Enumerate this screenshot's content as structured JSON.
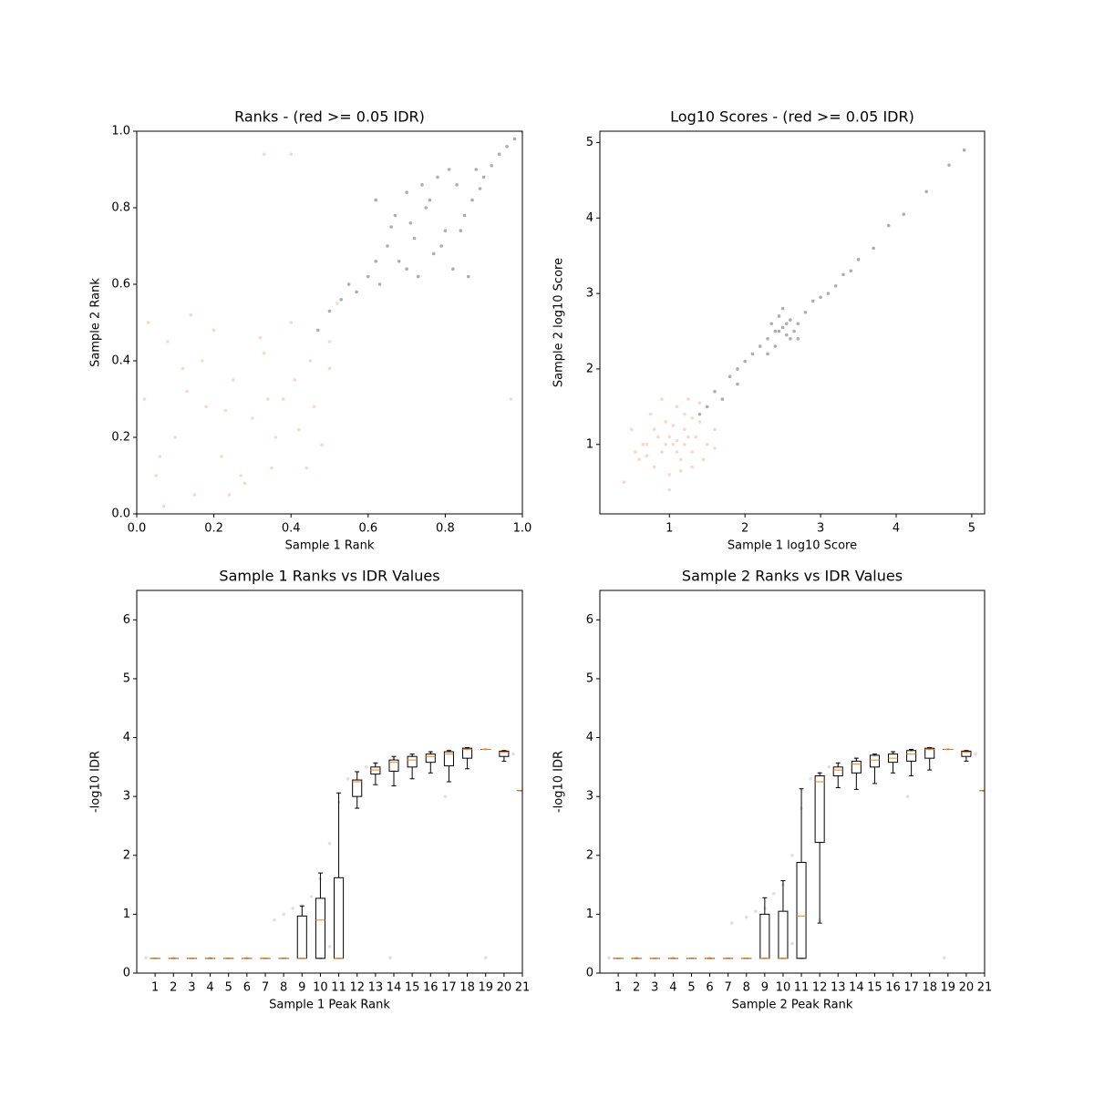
{
  "chart_data": [
    {
      "type": "scatter",
      "title": "Ranks - (red >= 0.05 IDR)",
      "x_label": "Sample 1 Rank",
      "y_label": "Sample 2 Rank",
      "xlim": [
        0,
        1
      ],
      "ylim": [
        0,
        1
      ],
      "xticks": [
        {
          "value": 0,
          "label": "0.0"
        },
        {
          "value": 0.2,
          "label": "0.2"
        },
        {
          "value": 0.4,
          "label": "0.4"
        },
        {
          "value": 0.6,
          "label": "0.6"
        },
        {
          "value": 0.8,
          "label": "0.8"
        },
        {
          "value": 1,
          "label": "1.0"
        }
      ],
      "yticks": [
        {
          "value": 0,
          "label": "0.0"
        },
        {
          "value": 0.2,
          "label": "0.2"
        },
        {
          "value": 0.4,
          "label": "0.4"
        },
        {
          "value": 0.6,
          "label": "0.6"
        },
        {
          "value": 0.8,
          "label": "0.8"
        },
        {
          "value": 1,
          "label": "1.0"
        }
      ],
      "series": [
        {
          "color": "#f08a6a",
          "alpha": 0.35,
          "x": [
            0.02,
            0.05,
            0.08,
            0.1,
            0.12,
            0.15,
            0.18,
            0.2,
            0.22,
            0.25,
            0.28,
            0.3,
            0.33,
            0.35,
            0.38,
            0.4,
            0.42,
            0.45,
            0.48,
            0.5,
            0.52,
            0.03,
            0.07,
            0.13,
            0.17,
            0.23,
            0.27,
            0.32,
            0.36,
            0.41,
            0.46,
            0.5,
            0.06,
            0.14,
            0.24,
            0.34,
            0.44,
            0.33,
            0.4,
            0.97
          ],
          "y": [
            0.3,
            0.1,
            0.45,
            0.2,
            0.38,
            0.05,
            0.28,
            0.48,
            0.15,
            0.35,
            0.08,
            0.25,
            0.42,
            0.12,
            0.3,
            0.5,
            0.22,
            0.4,
            0.18,
            0.45,
            0.55,
            0.5,
            0.02,
            0.32,
            0.4,
            0.27,
            0.1,
            0.46,
            0.2,
            0.35,
            0.28,
            0.38,
            0.15,
            0.52,
            0.05,
            0.3,
            0.12,
            0.94,
            0.94,
            0.3
          ]
        },
        {
          "color": "#333333",
          "alpha": 0.4,
          "x": [
            0.47,
            0.5,
            0.53,
            0.55,
            0.57,
            0.6,
            0.62,
            0.63,
            0.65,
            0.67,
            0.68,
            0.7,
            0.72,
            0.73,
            0.75,
            0.77,
            0.78,
            0.8,
            0.82,
            0.83,
            0.85,
            0.87,
            0.88,
            0.9,
            0.92,
            0.94,
            0.96,
            0.98,
            1.0,
            0.62,
            0.66,
            0.7,
            0.74,
            0.79,
            0.84,
            0.86,
            0.71,
            0.76,
            0.81,
            0.89
          ],
          "y": [
            0.48,
            0.53,
            0.56,
            0.6,
            0.58,
            0.62,
            0.82,
            0.6,
            0.7,
            0.78,
            0.66,
            0.84,
            0.72,
            0.62,
            0.8,
            0.68,
            0.88,
            0.74,
            0.64,
            0.86,
            0.78,
            0.82,
            0.9,
            0.88,
            0.91,
            0.94,
            0.96,
            0.98,
            1.0,
            0.66,
            0.75,
            0.64,
            0.86,
            0.7,
            0.74,
            0.62,
            0.76,
            0.82,
            0.9,
            0.85
          ]
        }
      ]
    },
    {
      "type": "scatter",
      "title": "Log10 Scores - (red >= 0.05 IDR)",
      "x_label": "Sample 1 log10 Score",
      "y_label": "Sample 2 log10 Score",
      "xlim": [
        0.08,
        5.17
      ],
      "ylim": [
        0.08,
        5.15
      ],
      "xticks": [
        1,
        2,
        3,
        4,
        5
      ],
      "yticks": [
        1,
        2,
        3,
        4,
        5
      ],
      "series": [
        {
          "color": "#f08a6a",
          "alpha": 0.35,
          "x": [
            0.4,
            0.5,
            0.6,
            0.7,
            0.75,
            0.8,
            0.85,
            0.9,
            0.95,
            1.0,
            1.05,
            1.1,
            1.15,
            1.2,
            1.25,
            1.3,
            1.35,
            1.4,
            1.5,
            1.6,
            0.65,
            0.9,
            1.0,
            1.1,
            1.2,
            1.3,
            0.8,
            1.0,
            1.2,
            1.45,
            0.55,
            0.95,
            1.05,
            1.15,
            1.4,
            1.25,
            0.7,
            1.1,
            1.3,
            1.6
          ],
          "y": [
            0.5,
            1.2,
            0.8,
            1.0,
            1.4,
            0.7,
            1.1,
            0.9,
            1.3,
            0.6,
            1.0,
            1.5,
            0.8,
            1.2,
            1.6,
            0.9,
            1.1,
            1.3,
            1.0,
            1.2,
            1.0,
            1.6,
            0.4,
            0.9,
            1.0,
            0.7,
            1.2,
            1.1,
            1.4,
            0.8,
            0.9,
            1.0,
            1.25,
            0.65,
            1.55,
            1.1,
            0.85,
            1.05,
            1.35,
            0.95
          ]
        },
        {
          "color": "#333333",
          "alpha": 0.4,
          "x": [
            1.4,
            1.5,
            1.6,
            1.7,
            1.8,
            1.9,
            2.0,
            2.1,
            2.2,
            2.3,
            2.35,
            2.4,
            2.45,
            2.5,
            2.55,
            2.6,
            2.65,
            2.7,
            2.8,
            2.9,
            3.0,
            3.1,
            3.2,
            3.3,
            3.4,
            3.5,
            3.7,
            3.9,
            4.1,
            4.4,
            4.7,
            4.9,
            2.4,
            2.5,
            2.6,
            2.55,
            2.45,
            2.7,
            1.9,
            2.3
          ],
          "y": [
            1.4,
            1.5,
            1.7,
            1.6,
            1.9,
            2.0,
            2.1,
            2.2,
            2.3,
            2.4,
            2.6,
            2.5,
            2.7,
            2.55,
            2.45,
            2.65,
            2.5,
            2.6,
            2.75,
            2.9,
            2.95,
            3.0,
            3.1,
            3.25,
            3.3,
            3.45,
            3.6,
            3.9,
            4.05,
            4.35,
            4.7,
            4.9,
            2.3,
            2.8,
            2.4,
            2.6,
            2.5,
            2.4,
            1.8,
            2.2
          ]
        }
      ]
    },
    {
      "type": "box",
      "title": "Sample 1 Ranks vs IDR Values",
      "x_label": "Sample 1 Peak Rank",
      "y_label": "-log10 IDR",
      "xlim": [
        0,
        21
      ],
      "ylim": [
        0,
        6.5
      ],
      "xticks": [
        1,
        2,
        3,
        4,
        5,
        6,
        7,
        8,
        9,
        10,
        11,
        12,
        13,
        14,
        15,
        16,
        17,
        18,
        19,
        20,
        21
      ],
      "yticks": [
        0,
        1,
        2,
        3,
        4,
        5,
        6
      ],
      "points": {
        "color": "#999999",
        "alpha": 0.3,
        "x": [
          0.5,
          2,
          4,
          6,
          7.5,
          8,
          8.5,
          9,
          9.5,
          10,
          10.5,
          11,
          11.5,
          12,
          12.5,
          13,
          14,
          15,
          16,
          17,
          18,
          19,
          20,
          20.5,
          10.5,
          13.8,
          16.8,
          19
        ],
        "y": [
          0.26,
          0.26,
          0.26,
          0.26,
          0.9,
          1.0,
          1.1,
          1.15,
          1.3,
          1.6,
          2.2,
          2.9,
          3.3,
          3.4,
          3.5,
          3.55,
          3.65,
          3.7,
          3.75,
          3.78,
          3.8,
          3.8,
          3.76,
          3.72,
          0.45,
          0.26,
          3.0,
          0.26
        ]
      },
      "positions": [
        1,
        2,
        3,
        4,
        5,
        6,
        7,
        8,
        9,
        10,
        11,
        12,
        13,
        14,
        15,
        16,
        17,
        18,
        19,
        20,
        21
      ],
      "boxes": [
        [
          0.25,
          0.25,
          0.25,
          0.25,
          0.25
        ],
        [
          0.25,
          0.25,
          0.25,
          0.25,
          0.25
        ],
        [
          0.25,
          0.25,
          0.25,
          0.25,
          0.25
        ],
        [
          0.25,
          0.25,
          0.25,
          0.25,
          0.25
        ],
        [
          0.25,
          0.25,
          0.25,
          0.25,
          0.25
        ],
        [
          0.25,
          0.25,
          0.25,
          0.25,
          0.25
        ],
        [
          0.25,
          0.25,
          0.25,
          0.25,
          0.25
        ],
        [
          0.25,
          0.25,
          0.25,
          0.25,
          0.25
        ],
        [
          0.25,
          0.25,
          0.25,
          0.97,
          1.14
        ],
        [
          0.25,
          0.25,
          0.9,
          1.27,
          1.7
        ],
        [
          0.25,
          0.25,
          0.25,
          1.62,
          3.06
        ],
        [
          2.8,
          3.0,
          3.25,
          3.28,
          3.42
        ],
        [
          3.2,
          3.38,
          3.45,
          3.5,
          3.57
        ],
        [
          3.18,
          3.43,
          3.58,
          3.62,
          3.68
        ],
        [
          3.3,
          3.5,
          3.62,
          3.68,
          3.72
        ],
        [
          3.4,
          3.58,
          3.68,
          3.72,
          3.76
        ],
        [
          3.25,
          3.52,
          3.72,
          3.76,
          3.78
        ],
        [
          3.47,
          3.65,
          3.8,
          3.82,
          3.83
        ],
        [
          3.8,
          3.8,
          3.8,
          3.8,
          3.8
        ],
        [
          3.6,
          3.68,
          3.75,
          3.77,
          3.78
        ],
        [
          3.1,
          3.1,
          3.1,
          3.1,
          3.1
        ]
      ]
    },
    {
      "type": "box",
      "title": "Sample 2 Ranks vs IDR Values",
      "x_label": "Sample 2 Peak Rank",
      "y_label": "-log10 IDR",
      "xlim": [
        0,
        21
      ],
      "ylim": [
        0,
        6.5
      ],
      "xticks": [
        1,
        2,
        3,
        4,
        5,
        6,
        7,
        8,
        9,
        10,
        11,
        12,
        13,
        14,
        15,
        16,
        17,
        18,
        19,
        20,
        21
      ],
      "yticks": [
        0,
        1,
        2,
        3,
        4,
        5,
        6
      ],
      "points": {
        "color": "#999999",
        "alpha": 0.3,
        "x": [
          0.5,
          2,
          4,
          6,
          7.2,
          8,
          8.5,
          9,
          9.5,
          10,
          10.5,
          11,
          11.5,
          12,
          12.5,
          13,
          14,
          15,
          16,
          17,
          18,
          19,
          20,
          20.5,
          10.5,
          12,
          16.8,
          18.8
        ],
        "y": [
          0.26,
          0.26,
          0.26,
          0.26,
          0.85,
          0.95,
          1.05,
          1.1,
          1.35,
          1.5,
          2.0,
          2.8,
          3.3,
          3.4,
          3.5,
          3.55,
          3.65,
          3.7,
          3.75,
          3.78,
          3.8,
          3.8,
          3.76,
          3.72,
          0.5,
          0.9,
          3.0,
          0.26
        ]
      },
      "positions": [
        1,
        2,
        3,
        4,
        5,
        6,
        7,
        8,
        9,
        10,
        11,
        12,
        13,
        14,
        15,
        16,
        17,
        18,
        19,
        20,
        21
      ],
      "boxes": [
        [
          0.25,
          0.25,
          0.25,
          0.25,
          0.25
        ],
        [
          0.25,
          0.25,
          0.25,
          0.25,
          0.25
        ],
        [
          0.25,
          0.25,
          0.25,
          0.25,
          0.25
        ],
        [
          0.25,
          0.25,
          0.25,
          0.25,
          0.25
        ],
        [
          0.25,
          0.25,
          0.25,
          0.25,
          0.25
        ],
        [
          0.25,
          0.25,
          0.25,
          0.25,
          0.25
        ],
        [
          0.25,
          0.25,
          0.25,
          0.25,
          0.25
        ],
        [
          0.25,
          0.25,
          0.25,
          0.25,
          0.25
        ],
        [
          0.25,
          0.25,
          0.25,
          1.0,
          1.28
        ],
        [
          0.25,
          0.25,
          0.25,
          1.05,
          1.57
        ],
        [
          0.25,
          0.25,
          0.97,
          1.88,
          3.13
        ],
        [
          0.85,
          2.22,
          3.25,
          3.35,
          3.4
        ],
        [
          3.15,
          3.35,
          3.45,
          3.5,
          3.57
        ],
        [
          3.12,
          3.4,
          3.55,
          3.6,
          3.65
        ],
        [
          3.22,
          3.5,
          3.62,
          3.7,
          3.72
        ],
        [
          3.4,
          3.58,
          3.65,
          3.72,
          3.76
        ],
        [
          3.35,
          3.6,
          3.72,
          3.78,
          3.8
        ],
        [
          3.45,
          3.65,
          3.8,
          3.82,
          3.83
        ],
        [
          3.8,
          3.8,
          3.8,
          3.8,
          3.8
        ],
        [
          3.6,
          3.68,
          3.75,
          3.77,
          3.78
        ],
        [
          3.1,
          3.1,
          3.1,
          3.1,
          3.1
        ]
      ]
    }
  ]
}
